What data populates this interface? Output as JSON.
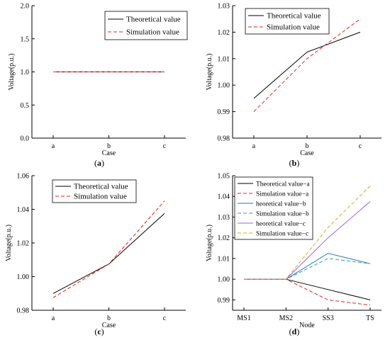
{
  "chart_data": [
    {
      "type": "line",
      "caption": "(a)",
      "categories": [
        "a",
        "b",
        "c"
      ],
      "xlabel": "Case",
      "ylabel": "Voltage(p.u.)",
      "ylim": [
        0.0,
        2.0
      ],
      "yticks": [
        "0.0",
        "0.5",
        "1.0",
        "1.5",
        "2.0"
      ],
      "legend_position": "top-right",
      "series": [
        {
          "name": "Theoretical value",
          "values": [
            1.0,
            1.0,
            1.0
          ],
          "color": "#000000",
          "dash": "solid"
        },
        {
          "name": "Simulation value",
          "values": [
            1.0,
            1.0,
            1.0
          ],
          "color": "#e8211d",
          "dash": "dashed"
        }
      ]
    },
    {
      "type": "line",
      "caption": "(b)",
      "categories": [
        "a",
        "b",
        "c"
      ],
      "xlabel": "Case",
      "ylabel": "Voltage(p.u.)",
      "ylim": [
        0.98,
        1.03
      ],
      "yticks": [
        "0.98",
        "0.99",
        "1.00",
        "1.01",
        "1.02",
        "1.03"
      ],
      "legend_position": "top-right",
      "series": [
        {
          "name": "Theoretical value",
          "values": [
            0.995,
            1.0125,
            1.02
          ],
          "color": "#000000",
          "dash": "solid"
        },
        {
          "name": "Simulation value",
          "values": [
            0.99,
            1.01,
            1.025
          ],
          "color": "#e8211d",
          "dash": "dashed"
        }
      ]
    },
    {
      "type": "line",
      "caption": "(c)",
      "categories": [
        "a",
        "b",
        "c"
      ],
      "xlabel": "Case",
      "ylabel": "Voltage(p.u.)",
      "ylim": [
        0.98,
        1.06
      ],
      "yticks": [
        "0.98",
        "1.00",
        "1.02",
        "1.04",
        "1.06"
      ],
      "legend_position": "top-right",
      "series": [
        {
          "name": "Theoretical value",
          "values": [
            0.99,
            1.0075,
            1.0375
          ],
          "color": "#000000",
          "dash": "solid"
        },
        {
          "name": "Simulation value",
          "values": [
            0.9875,
            1.0075,
            1.045
          ],
          "color": "#e8211d",
          "dash": "dashed"
        }
      ]
    },
    {
      "type": "line",
      "caption": "(d)",
      "categories": [
        "MS1",
        "MS2",
        "SS3",
        "TS"
      ],
      "xlabel": "Node",
      "ylabel": "Voltage(p.u.)",
      "ylim": [
        0.985,
        1.05
      ],
      "yticks": [
        "0.99",
        "1.00",
        "1.01",
        "1.02",
        "1.03",
        "1.04",
        "1.05"
      ],
      "ytick_values": [
        0.99,
        1.0,
        1.01,
        1.02,
        1.03,
        1.04,
        1.05
      ],
      "legend_position": "top-left",
      "series": [
        {
          "name": "Theoretical value−a",
          "values": [
            1.0,
            1.0,
            0.995,
            0.99
          ],
          "color": "#000000",
          "dash": "solid"
        },
        {
          "name": "Simulation value−a",
          "values": [
            1.0,
            1.0,
            0.99,
            0.9875
          ],
          "color": "#e8211d",
          "dash": "dashed"
        },
        {
          "name": "heoretical value−b",
          "values": [
            1.0,
            1.0,
            1.0125,
            1.0075
          ],
          "color": "#1f77c4",
          "dash": "solid"
        },
        {
          "name": "Simulation value−b",
          "values": [
            1.0,
            1.0,
            1.01,
            1.0075
          ],
          "color": "#2ca58d",
          "dash": "dashed"
        },
        {
          "name": "heoretical value−c",
          "values": [
            1.0,
            1.0,
            1.02,
            1.0375
          ],
          "color": "#a05ee0",
          "dash": "solid"
        },
        {
          "name": "Simulation value−c",
          "values": [
            1.0,
            1.0,
            1.025,
            1.045
          ],
          "color": "#e0a41d",
          "dash": "dashed"
        }
      ]
    }
  ]
}
